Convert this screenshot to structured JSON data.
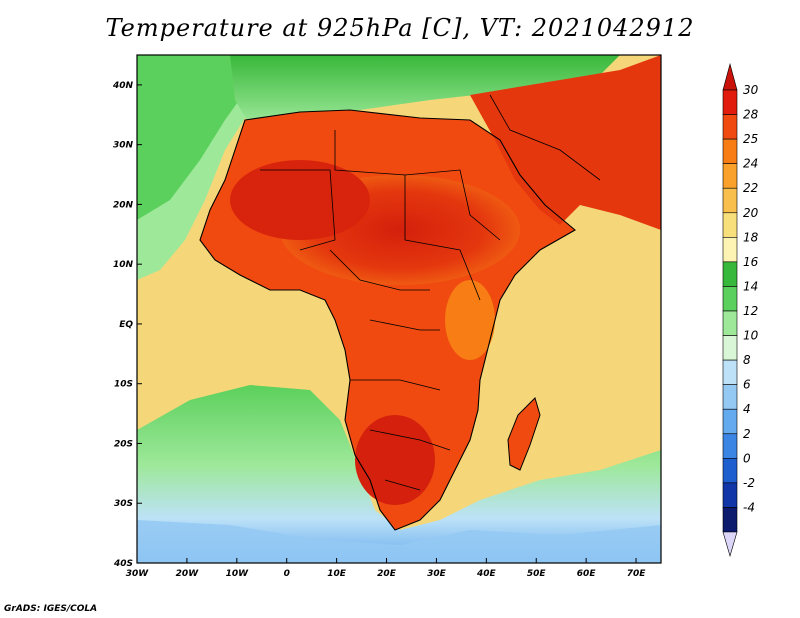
{
  "title": "Temperature at 925hPa [C], VT: 2021042912",
  "credit": "GrADS: IGES/COLA",
  "map": {
    "lon_range": [
      -30,
      75
    ],
    "lat_range": [
      -40,
      45
    ],
    "lon_ticks": [
      {
        "value": -30,
        "label": "30W"
      },
      {
        "value": -20,
        "label": "20W"
      },
      {
        "value": -10,
        "label": "10W"
      },
      {
        "value": 0,
        "label": "0"
      },
      {
        "value": 10,
        "label": "10E"
      },
      {
        "value": 20,
        "label": "20E"
      },
      {
        "value": 30,
        "label": "30E"
      },
      {
        "value": 40,
        "label": "40E"
      },
      {
        "value": 50,
        "label": "50E"
      },
      {
        "value": 60,
        "label": "60E"
      },
      {
        "value": 70,
        "label": "70E"
      }
    ],
    "lat_ticks": [
      {
        "value": 40,
        "label": "40N"
      },
      {
        "value": 30,
        "label": "30N"
      },
      {
        "value": 20,
        "label": "20N"
      },
      {
        "value": 10,
        "label": "10N"
      },
      {
        "value": 0,
        "label": "EQ"
      },
      {
        "value": -10,
        "label": "10S"
      },
      {
        "value": -20,
        "label": "20S"
      },
      {
        "value": -30,
        "label": "30S"
      },
      {
        "value": -40,
        "label": "40S"
      }
    ],
    "ocean_background": "#f5d77a"
  },
  "colorbar": {
    "labels": [
      "30",
      "28",
      "25",
      "24",
      "22",
      "20",
      "18",
      "16",
      "14",
      "12",
      "10",
      "8",
      "6",
      "4",
      "2",
      "0",
      "-2",
      "-4"
    ],
    "colors": [
      "#e21c0c",
      "#f04a10",
      "#f77d14",
      "#f9a12a",
      "#f8bf4c",
      "#f7df7c",
      "#fdf3b2",
      "#38b83a",
      "#5cd05c",
      "#9ee89a",
      "#d9f7d6",
      "#bde2f7",
      "#94c9f3",
      "#64aaee",
      "#3b85e4",
      "#1e5fd0",
      "#1036a8",
      "#0c1b6e"
    ],
    "top_arrow_color": "#c8120a",
    "bottom_arrow_color": "#dcd6f8"
  }
}
